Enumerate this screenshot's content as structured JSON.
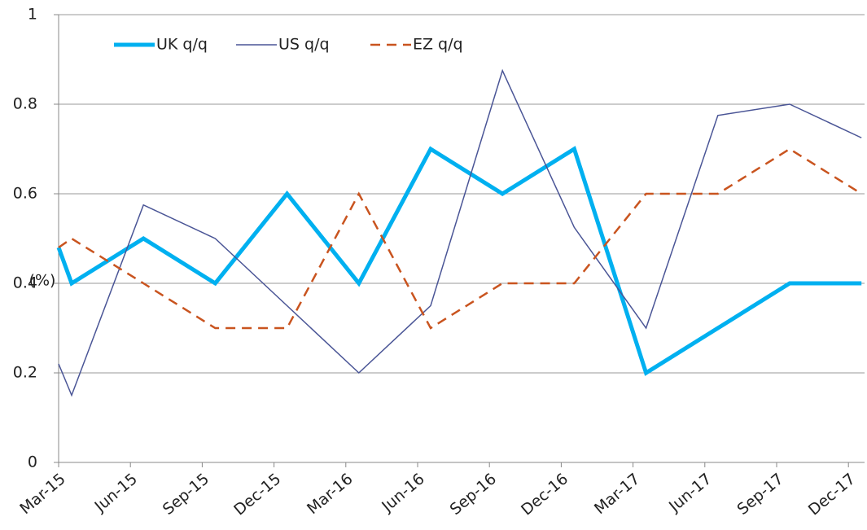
{
  "chart_data": {
    "type": "line",
    "y_label": "(%)",
    "categories": [
      null,
      "Mar-15",
      "Jun-15",
      "Sep-15",
      "Dec-15",
      "Mar-16",
      "Jun-16",
      "Sep-16",
      "Dec-16",
      "Mar-17",
      "Jun-17",
      "Sep-17",
      "Dec-17"
    ],
    "series": [
      {
        "name": "UK q/q",
        "color": "#00b0f0",
        "line_width": 5,
        "dashed": false,
        "values": [
          0.48,
          0.4,
          0.5,
          0.4,
          0.6,
          0.4,
          0.7,
          0.6,
          0.7,
          0.2,
          0.3,
          0.4,
          0.4
        ]
      },
      {
        "name": "US q/q",
        "color": "#4a5596",
        "line_width": 1.5,
        "dashed": false,
        "values": [
          0.22,
          0.15,
          0.575,
          0.5,
          0.35,
          0.2,
          0.35,
          0.875,
          0.525,
          0.3,
          0.775,
          0.8,
          0.725
        ]
      },
      {
        "name": "EZ q/q",
        "color": "#c9541f",
        "line_width": 2.5,
        "dashed": true,
        "values": [
          0.48,
          0.5,
          0.4,
          0.3,
          0.3,
          0.6,
          0.3,
          0.4,
          0.4,
          0.6,
          0.6,
          0.7,
          0.6
        ]
      }
    ],
    "ylim": [
      0,
      1
    ],
    "yticks": [
      0,
      0.2,
      0.4,
      0.6,
      0.8,
      1
    ],
    "grid": true
  }
}
